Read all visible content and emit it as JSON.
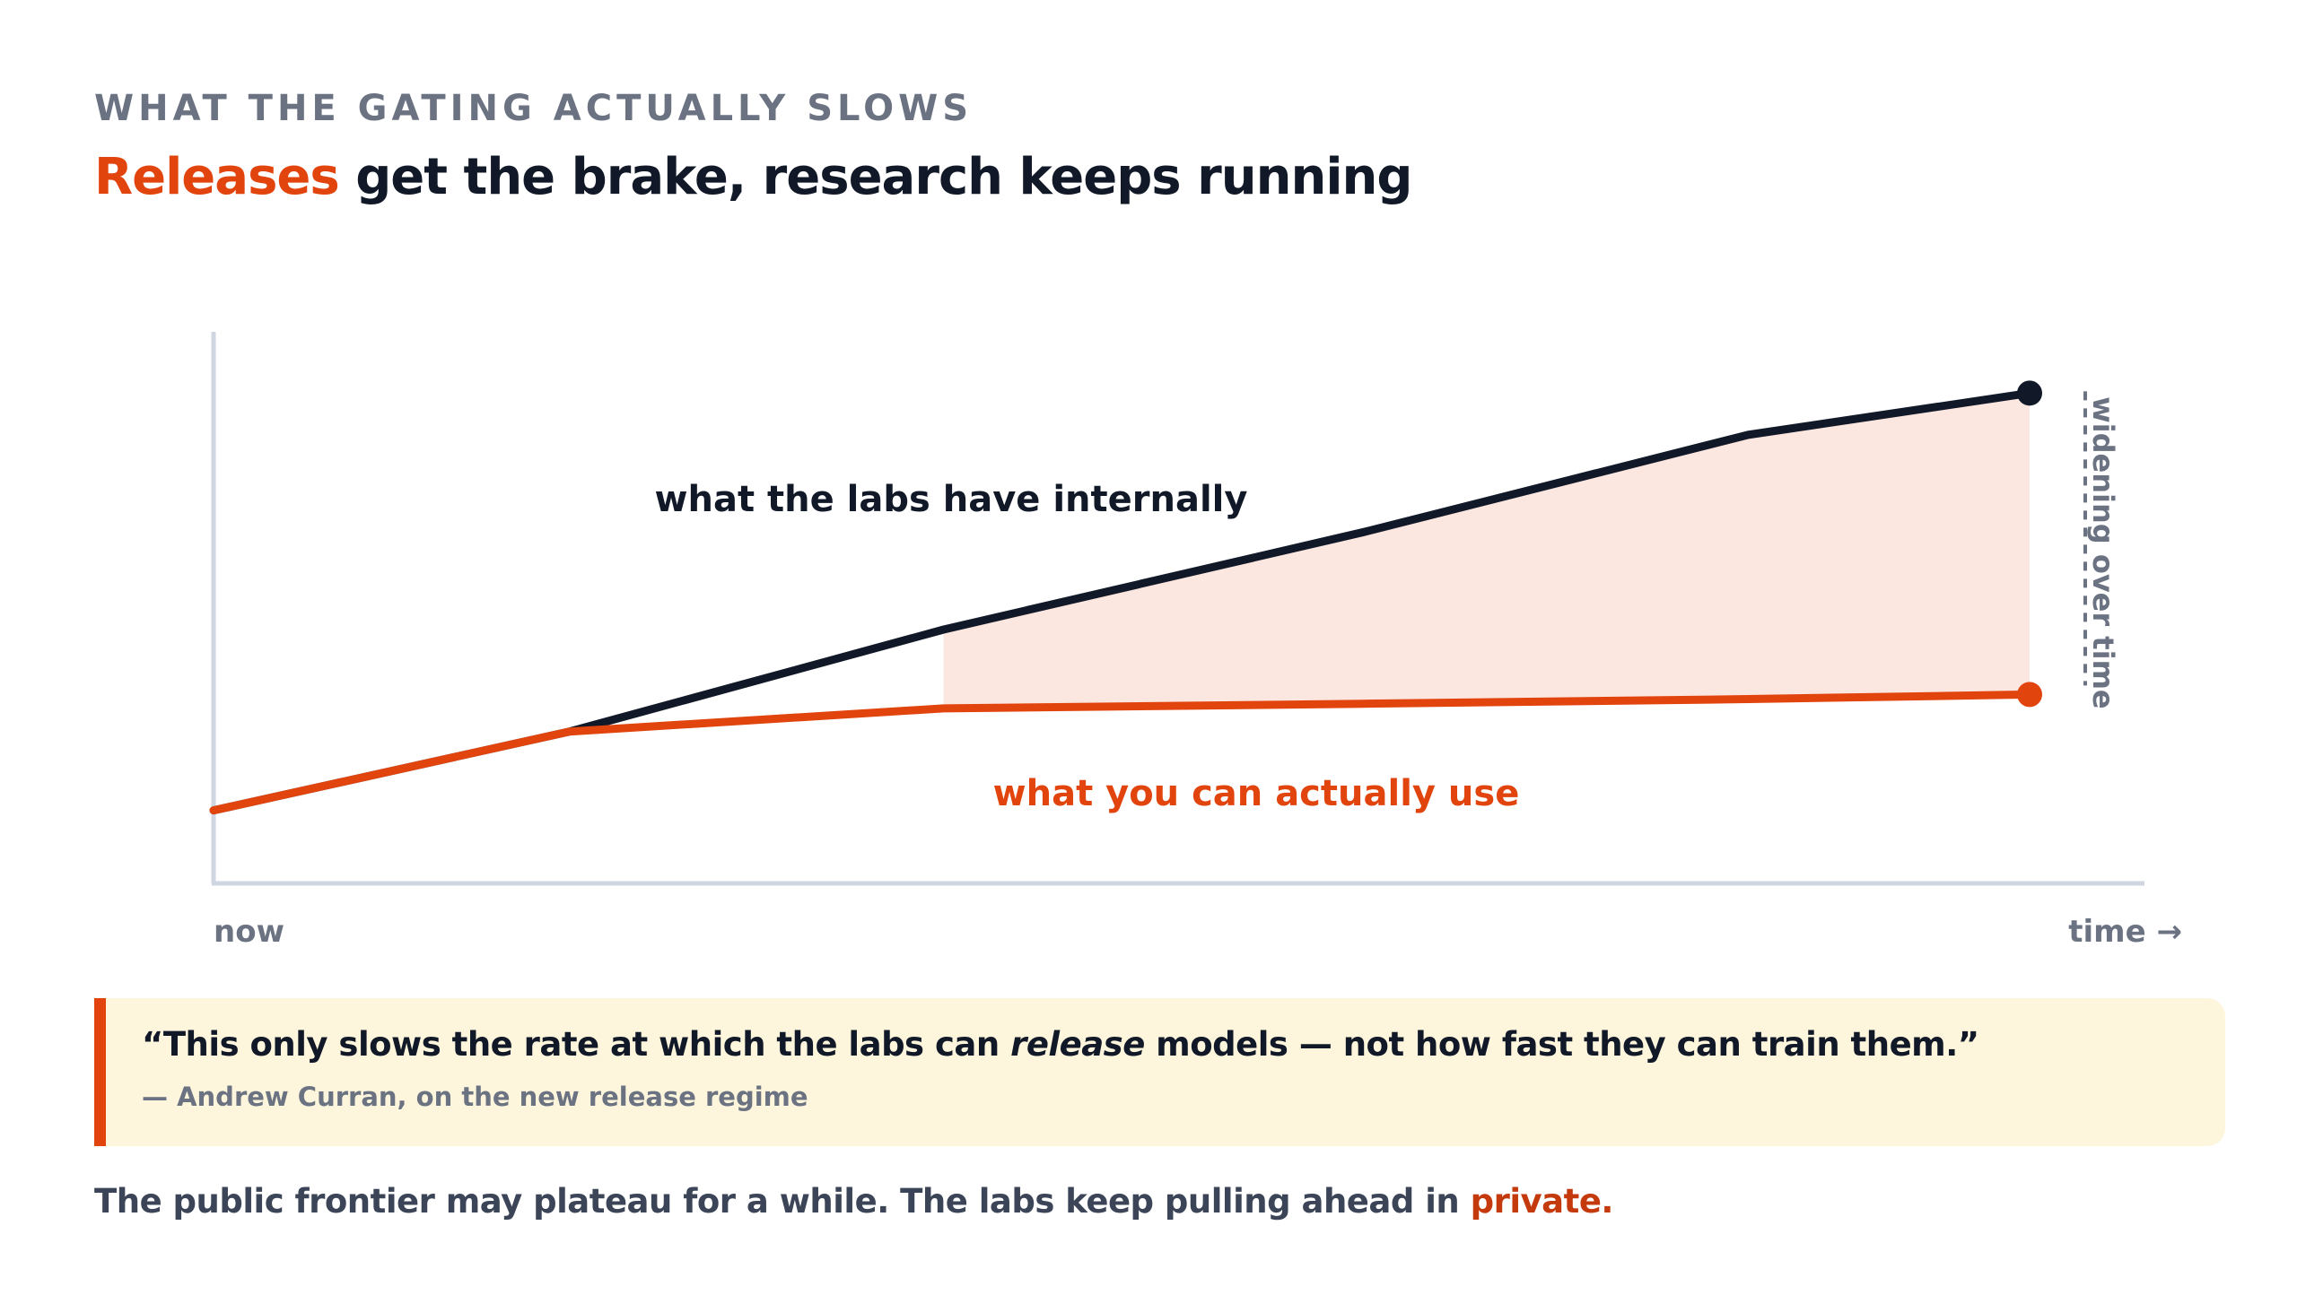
{
  "eyebrow": "WHAT THE GATING ACTUALLY SLOWS",
  "headline": {
    "accent": "Releases",
    "rest": " get the brake, research keeps running"
  },
  "colors": {
    "accent": "#e2440e",
    "dark": "#111827",
    "muted": "#6b7282",
    "gap_fill": "#fce6e0",
    "axis": "#cfd6e2",
    "quote_bg": "#fef6dc"
  },
  "chart_data": {
    "type": "line",
    "xlabel_start": "now",
    "xlabel_end": "time →",
    "ylim": [
      0,
      100
    ],
    "xlim": [
      0,
      100
    ],
    "series": [
      {
        "name": "what the labs have internally",
        "color": "#111827",
        "x": [
          0,
          19.6,
          40.2,
          63.3,
          84.5,
          100
        ],
        "y": [
          8,
          25,
          47,
          68,
          89,
          98
        ]
      },
      {
        "name": "what you can actually use",
        "color": "#e2440e",
        "x": [
          0,
          19.6,
          40.2,
          63.3,
          84.5,
          100
        ],
        "y": [
          8,
          25,
          30,
          31,
          32,
          33
        ]
      }
    ],
    "shaded_gap": {
      "from_x": 40.2,
      "to_x": 100
    },
    "annotation": "widening over time"
  },
  "quote": {
    "before": "“This only slows the rate at which the labs can ",
    "emphasis": "release",
    "after": " models — not how fast they can train them.”",
    "attribution": "— Andrew Curran, on the new release regime"
  },
  "footer": {
    "text": "The public frontier may plateau for a while. The labs keep pulling ahead in ",
    "accent": "private."
  }
}
